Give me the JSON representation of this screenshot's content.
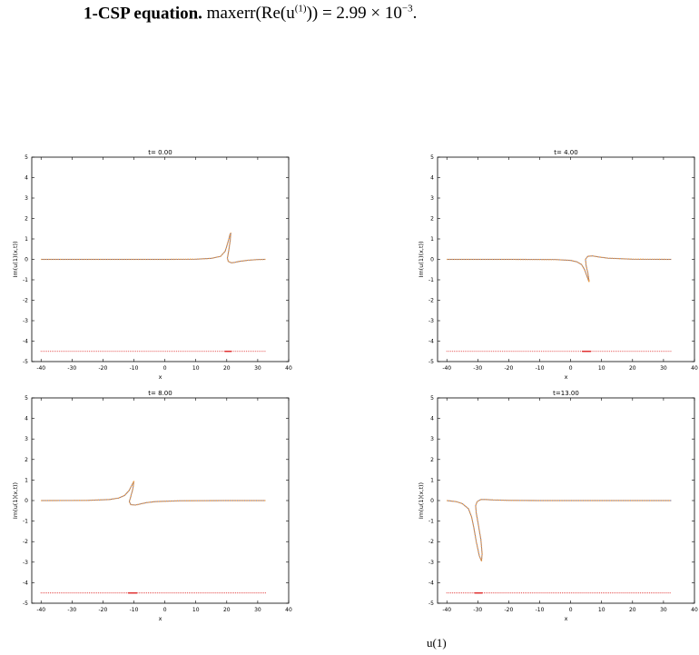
{
  "caption_top": {
    "label": "1-CSP equation.",
    "metric": "maxerr(Re(u",
    "sup": "(1)",
    "metric_tail": ")) = 2.99 × 10",
    "exp": "−3",
    "end": "."
  },
  "caption_bottom": "u(1)",
  "chart_data": [
    {
      "type": "line",
      "title": "t= 0.00",
      "xlabel": "x",
      "ylabel": "Im(u(1)(x,t))",
      "xlim": [
        -43,
        40
      ],
      "ylim": [
        -5,
        5
      ],
      "xticks": [
        -40,
        -30,
        -20,
        -10,
        0,
        10,
        20,
        30,
        40
      ],
      "yticks": [
        -5,
        -4,
        -3,
        -2,
        -1,
        0,
        1,
        2,
        3,
        4,
        5
      ],
      "grid": false,
      "series": [
        {
          "style": "exact-curve",
          "color": "#6a6a9a",
          "x": [
            -40,
            -20,
            0,
            10,
            15,
            18,
            19.5,
            20.5,
            21,
            21.3,
            21.1,
            20.6,
            20.2,
            20.5,
            21.5,
            22.5,
            24,
            27,
            30,
            32.5
          ],
          "y": [
            0,
            0,
            0,
            0.01,
            0.05,
            0.15,
            0.4,
            0.9,
            1.2,
            1.3,
            0.9,
            0.4,
            0.05,
            -0.1,
            -0.17,
            -0.15,
            -0.1,
            -0.04,
            -0.01,
            0
          ]
        },
        {
          "style": "dotted-numeric",
          "color": "#f5a040",
          "x": [
            -40,
            -20,
            0,
            10,
            15,
            18,
            19.5,
            20.5,
            21,
            21.3,
            21.1,
            20.6,
            20.2,
            20.5,
            21.5,
            22.5,
            24,
            27,
            30,
            32.5
          ],
          "y": [
            0,
            0,
            0,
            0.01,
            0.05,
            0.15,
            0.4,
            0.9,
            1.2,
            1.3,
            0.9,
            0.4,
            0.05,
            -0.1,
            -0.17,
            -0.15,
            -0.1,
            -0.04,
            -0.01,
            0
          ]
        },
        {
          "style": "mesh-points",
          "color": "#e03030",
          "y": -4.5,
          "x_range": [
            -40,
            32.5
          ],
          "dense_x": [
            19,
            21.5
          ]
        }
      ]
    },
    {
      "type": "line",
      "title": "t= 4.00",
      "xlabel": "x",
      "ylabel": "Im(u(1)(x,t))",
      "xlim": [
        -43,
        40
      ],
      "ylim": [
        -5,
        5
      ],
      "xticks": [
        -40,
        -30,
        -20,
        -10,
        0,
        10,
        20,
        30,
        40
      ],
      "yticks": [
        -5,
        -4,
        -3,
        -2,
        -1,
        0,
        1,
        2,
        3,
        4,
        5
      ],
      "grid": false,
      "series": [
        {
          "style": "exact-curve",
          "color": "#6a6a9a",
          "x": [
            -40,
            -20,
            -5,
            0,
            2,
            3.5,
            4.5,
            5.2,
            5.8,
            6.0,
            5.6,
            5.0,
            4.8,
            5.5,
            7,
            9,
            12,
            20,
            32.5
          ],
          "y": [
            0,
            0,
            -0.01,
            -0.05,
            -0.12,
            -0.25,
            -0.5,
            -0.8,
            -1.05,
            -1.1,
            -0.7,
            -0.3,
            0.0,
            0.15,
            0.17,
            0.12,
            0.06,
            0.01,
            0
          ]
        },
        {
          "style": "dotted-numeric",
          "color": "#f5a040",
          "x": [
            -40,
            -20,
            -5,
            0,
            2,
            3.5,
            4.5,
            5.2,
            5.8,
            6.0,
            5.6,
            5.0,
            4.8,
            5.5,
            7,
            9,
            12,
            20,
            32.5
          ],
          "y": [
            0,
            0,
            -0.01,
            -0.05,
            -0.12,
            -0.25,
            -0.5,
            -0.8,
            -1.05,
            -1.1,
            -0.7,
            -0.3,
            0.0,
            0.15,
            0.17,
            0.12,
            0.06,
            0.01,
            0
          ]
        },
        {
          "style": "mesh-points",
          "color": "#e03030",
          "y": -4.5,
          "x_range": [
            -40,
            32.5
          ],
          "dense_x": [
            3.5,
            6.5
          ]
        }
      ]
    },
    {
      "type": "line",
      "title": "t= 8.00",
      "xlabel": "x",
      "ylabel": "Im(u(1)(x,t))",
      "xlim": [
        -43,
        40
      ],
      "ylim": [
        -5,
        5
      ],
      "xticks": [
        -40,
        -30,
        -20,
        -10,
        0,
        10,
        20,
        30,
        40
      ],
      "yticks": [
        -5,
        -4,
        -3,
        -2,
        -1,
        0,
        1,
        2,
        3,
        4,
        5
      ],
      "grid": false,
      "series": [
        {
          "style": "exact-curve",
          "color": "#6a6a9a",
          "x": [
            -40,
            -25,
            -18,
            -15,
            -13,
            -11.5,
            -10.5,
            -10.0,
            -10.3,
            -11.0,
            -11.5,
            -11.0,
            -9.5,
            -8,
            -6,
            -3,
            5,
            20,
            32.5
          ],
          "y": [
            0,
            0.01,
            0.05,
            0.12,
            0.25,
            0.5,
            0.8,
            0.95,
            0.6,
            0.2,
            -0.05,
            -0.2,
            -0.22,
            -0.17,
            -0.1,
            -0.05,
            -0.01,
            0,
            0
          ]
        },
        {
          "style": "dotted-numeric",
          "color": "#f5a040",
          "x": [
            -40,
            -25,
            -18,
            -15,
            -13,
            -11.5,
            -10.5,
            -10.0,
            -10.3,
            -11.0,
            -11.5,
            -11.0,
            -9.5,
            -8,
            -6,
            -3,
            5,
            20,
            32.5
          ],
          "y": [
            0,
            0.01,
            0.05,
            0.12,
            0.25,
            0.5,
            0.8,
            0.95,
            0.6,
            0.2,
            -0.05,
            -0.2,
            -0.22,
            -0.17,
            -0.1,
            -0.05,
            -0.01,
            0,
            0
          ]
        },
        {
          "style": "mesh-points",
          "color": "#e03030",
          "y": -4.5,
          "x_range": [
            -40,
            32.5
          ],
          "dense_x": [
            -12,
            -9
          ]
        }
      ]
    },
    {
      "type": "line",
      "title": "t=13.00",
      "xlabel": "x",
      "ylabel": "Im(u(1)(x,t))",
      "xlim": [
        -43,
        40
      ],
      "ylim": [
        -5,
        5
      ],
      "xticks": [
        -40,
        -30,
        -20,
        -10,
        0,
        10,
        20,
        30,
        40
      ],
      "yticks": [
        -5,
        -4,
        -3,
        -2,
        -1,
        0,
        1,
        2,
        3,
        4,
        5
      ],
      "grid": false,
      "series": [
        {
          "style": "exact-curve",
          "color": "#6a6a9a",
          "x": [
            -40,
            -37,
            -35,
            -33,
            -32,
            -31.3,
            -30.5,
            -29.5,
            -28.8,
            -28.6,
            -29.0,
            -29.8,
            -30.5,
            -30.7,
            -30.2,
            -29.0,
            -27.5,
            -25,
            -20,
            -10,
            10,
            32.5
          ],
          "y": [
            0,
            -0.05,
            -0.15,
            -0.4,
            -0.8,
            -1.3,
            -2.0,
            -2.7,
            -2.95,
            -2.6,
            -1.9,
            -1.2,
            -0.6,
            -0.25,
            -0.05,
            0.05,
            0.05,
            0.03,
            0.01,
            0,
            0,
            0
          ]
        },
        {
          "style": "dotted-numeric",
          "color": "#f5a040",
          "x": [
            -40,
            -37,
            -35,
            -33,
            -32,
            -31.3,
            -30.5,
            -29.5,
            -28.8,
            -28.6,
            -29.0,
            -29.8,
            -30.5,
            -30.7,
            -30.2,
            -29.0,
            -27.5,
            -25,
            -20,
            -10,
            10,
            32.5
          ],
          "y": [
            0,
            -0.05,
            -0.15,
            -0.4,
            -0.8,
            -1.3,
            -2.0,
            -2.7,
            -2.95,
            -2.6,
            -1.9,
            -1.2,
            -0.6,
            -0.25,
            -0.05,
            0.05,
            0.05,
            0.03,
            0.01,
            0,
            0,
            0
          ]
        },
        {
          "style": "mesh-points",
          "color": "#e03030",
          "y": -4.5,
          "x_range": [
            -40,
            32.5
          ],
          "dense_x": [
            -31.5,
            -28.5
          ]
        }
      ]
    }
  ]
}
